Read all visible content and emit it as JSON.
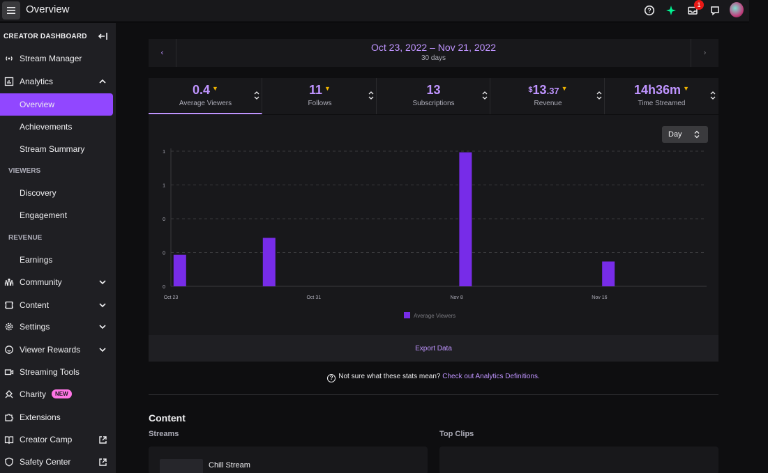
{
  "header": {
    "title": "Overview",
    "notification_count": "1",
    "icons": [
      "menu-icon",
      "help-icon",
      "prime-icon",
      "inbox-icon",
      "whispers-icon",
      "user-avatar"
    ]
  },
  "sidebar": {
    "title": "CREATOR DASHBOARD",
    "items": [
      {
        "label": "Stream Manager",
        "icon": "broadcast-icon"
      },
      {
        "label": "Analytics",
        "icon": "analytics-icon",
        "expanded": true
      },
      {
        "label": "Overview",
        "active": true
      },
      {
        "label": "Achievements"
      },
      {
        "label": "Stream Summary"
      },
      {
        "section": "VIEWERS"
      },
      {
        "label": "Discovery"
      },
      {
        "label": "Engagement"
      },
      {
        "section": "REVENUE"
      },
      {
        "label": "Earnings"
      },
      {
        "label": "Community",
        "icon": "community-icon"
      },
      {
        "label": "Content",
        "icon": "content-icon"
      },
      {
        "label": "Settings",
        "icon": "gear-icon"
      },
      {
        "label": "Viewer Rewards",
        "icon": "rewards-icon"
      },
      {
        "label": "Streaming Tools",
        "icon": "camera-icon"
      },
      {
        "label": "Charity",
        "icon": "charity-icon",
        "badge": "NEW"
      },
      {
        "label": "Extensions",
        "icon": "puzzle-icon"
      },
      {
        "label": "Creator Camp",
        "icon": "book-icon"
      },
      {
        "label": "Safety Center",
        "icon": "shield-icon"
      }
    ]
  },
  "date": {
    "range": "Oct 23, 2022 – Nov 21, 2022",
    "span": "30 days"
  },
  "stats": [
    {
      "value": "0.4",
      "label": "Average Viewers",
      "active": true
    },
    {
      "value": "11",
      "label": "Follows"
    },
    {
      "value": "13",
      "label": "Subscriptions"
    },
    {
      "currency": "$",
      "value": "13",
      "cents": ".37",
      "label": "Revenue"
    },
    {
      "value": "14h36m",
      "label": "Time Streamed"
    }
  ],
  "granularity": "Day",
  "chart_data": {
    "type": "bar",
    "title": "",
    "x_ticks": [
      "Oct 23",
      "Oct 31",
      "Nov 8",
      "Nov 16"
    ],
    "y_tick_labels": [
      "0",
      "0",
      "0",
      "1",
      "1"
    ],
    "ylim": [
      0,
      1.2
    ],
    "series": [
      {
        "name": "Average Viewers",
        "color": "#772ce8",
        "points": [
          {
            "date": "2022-10-23",
            "value": 0.28
          },
          {
            "date": "2022-10-28",
            "value": 0.43
          },
          {
            "date": "2022-11-08",
            "value": 1.19
          },
          {
            "date": "2022-11-16",
            "value": 0.22
          }
        ]
      }
    ],
    "grid": true,
    "legend": "bottom"
  },
  "export_label": "Export Data",
  "help": {
    "text": "Not sure what these stats mean?",
    "link": "Check out Analytics Definitions."
  },
  "content": {
    "title": "Content",
    "streams_label": "Streams",
    "clips_label": "Top Clips",
    "stream_name": "Chill Stream"
  }
}
